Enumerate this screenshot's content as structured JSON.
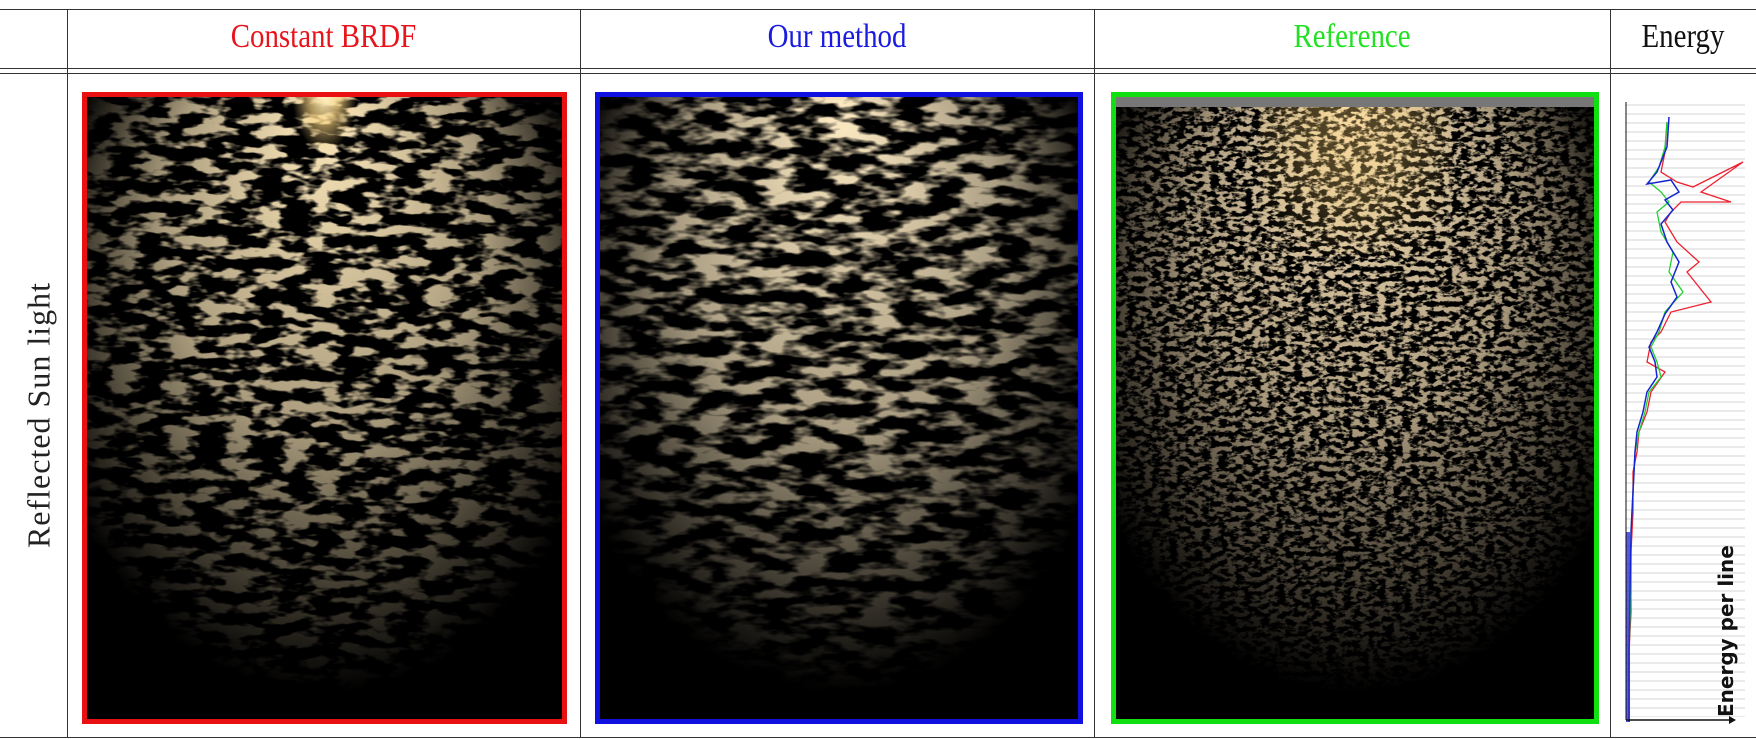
{
  "header": {
    "columns": [
      "Constant BRDF",
      "Our method",
      "Reference",
      "Energy"
    ]
  },
  "row": {
    "label": "Reflected Sun light"
  },
  "energy_plot": {
    "axis_label": "Energy per line"
  }
}
